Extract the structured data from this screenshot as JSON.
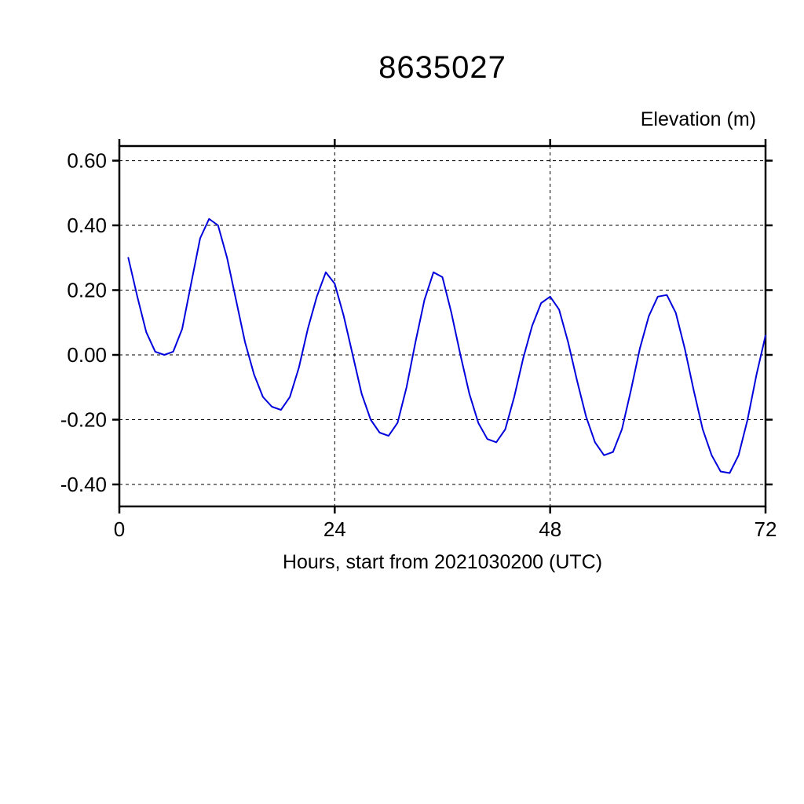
{
  "page": {
    "background": "#ffffff"
  },
  "chart_data": {
    "type": "line",
    "title": "8635027",
    "ylabel": "Elevation (m)",
    "xlabel": "Hours, start from 2021030200 (UTC)",
    "xlim": [
      0,
      72
    ],
    "ylim": [
      -0.468,
      0.645
    ],
    "xticks": [
      {
        "v": 0,
        "label": "0"
      },
      {
        "v": 24,
        "label": "24"
      },
      {
        "v": 48,
        "label": "48"
      },
      {
        "v": 72,
        "label": "72"
      }
    ],
    "yticks": [
      {
        "v": 0.6,
        "label": "0.60"
      },
      {
        "v": 0.4,
        "label": "0.40"
      },
      {
        "v": 0.2,
        "label": "0.20"
      },
      {
        "v": 0.0,
        "label": "0.00"
      },
      {
        "v": -0.2,
        "label": "-0.20"
      },
      {
        "v": -0.4,
        "label": "-0.40"
      }
    ],
    "grid_x": [
      24,
      48
    ],
    "grid_y": [
      0.6,
      0.4,
      0.2,
      0.0,
      -0.2,
      -0.4
    ],
    "grid_on": true,
    "legend_position": "none",
    "line_color": "#0000dd",
    "series": [
      {
        "name": "elevation",
        "x": [
          1,
          2,
          3,
          4,
          5,
          6,
          7,
          8,
          9,
          10,
          11,
          12,
          13,
          14,
          15,
          16,
          17,
          18,
          19,
          20,
          21,
          22,
          23,
          24,
          25,
          26,
          27,
          28,
          29,
          30,
          31,
          32,
          33,
          34,
          35,
          36,
          37,
          38,
          39,
          40,
          41,
          42,
          43,
          44,
          45,
          46,
          47,
          48,
          49,
          50,
          51,
          52,
          53,
          54,
          55,
          56,
          57,
          58,
          59,
          60,
          61,
          62,
          63,
          64,
          65,
          66,
          67,
          68,
          69,
          70,
          71,
          72
        ],
        "y": [
          0.3,
          0.18,
          0.07,
          0.01,
          0.0,
          0.01,
          0.08,
          0.22,
          0.36,
          0.42,
          0.4,
          0.3,
          0.17,
          0.04,
          -0.06,
          -0.13,
          -0.16,
          -0.17,
          -0.13,
          -0.04,
          0.08,
          0.18,
          0.255,
          0.22,
          0.12,
          0.0,
          -0.12,
          -0.2,
          -0.24,
          -0.25,
          -0.21,
          -0.1,
          0.04,
          0.17,
          0.255,
          0.24,
          0.13,
          0.0,
          -0.12,
          -0.21,
          -0.26,
          -0.27,
          -0.23,
          -0.13,
          -0.01,
          0.09,
          0.16,
          0.18,
          0.14,
          0.04,
          -0.08,
          -0.19,
          -0.27,
          -0.31,
          -0.3,
          -0.23,
          -0.11,
          0.02,
          0.12,
          0.18,
          0.185,
          0.13,
          0.02,
          -0.11,
          -0.23,
          -0.31,
          -0.36,
          -0.365,
          -0.31,
          -0.2,
          -0.06,
          0.06
        ]
      }
    ]
  }
}
